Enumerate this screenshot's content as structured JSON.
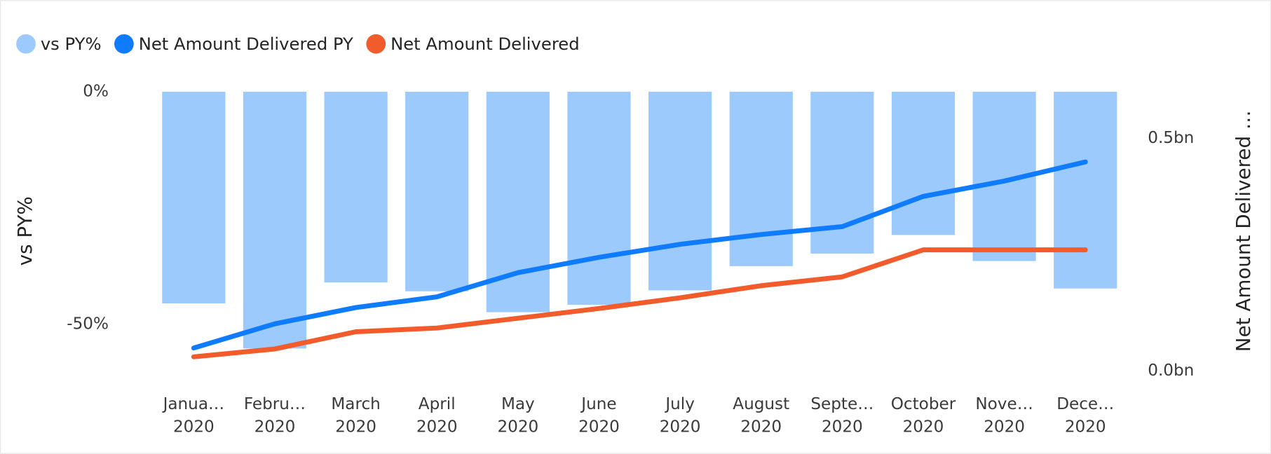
{
  "chart_data": {
    "type": "combo",
    "categories": [
      "Janua… 2020",
      "Febru… 2020",
      "March 2020",
      "April 2020",
      "May 2020",
      "June 2020",
      "July 2020",
      "August 2020",
      "Septe… 2020",
      "October 2020",
      "Nove… 2020",
      "Dece… 2020"
    ],
    "ylabel": "vs PY%",
    "y2label": "Net Amount Delivered …",
    "ylim": [
      -62,
      0
    ],
    "yticks": [
      {
        "value": 0,
        "label": "0%"
      },
      {
        "value": -50,
        "label": "-50%"
      }
    ],
    "y2lim": [
      -0.02,
      0.6
    ],
    "y2ticks": [
      {
        "value": 0,
        "label": "0.0bn"
      },
      {
        "value": 0.5,
        "label": "0.5bn"
      }
    ],
    "legend": "top-left",
    "series": [
      {
        "name": "vs PY%",
        "type": "bar",
        "color": "#9ccafd",
        "values": [
          -45.5,
          -55.2,
          -41,
          -42.9,
          -47.4,
          -45.8,
          -42.7,
          -37.5,
          -34.8,
          -30.8,
          -36.4,
          -42.3
        ]
      },
      {
        "name": "Net Amount Delivered PY",
        "type": "line",
        "axis": "y2",
        "color": "#0f7bff",
        "values": [
          0.049,
          0.101,
          0.136,
          0.159,
          0.211,
          0.244,
          0.272,
          0.293,
          0.31,
          0.375,
          0.408,
          0.449
        ]
      },
      {
        "name": "Net Amount Delivered",
        "type": "line",
        "axis": "y2",
        "color": "#f25c2c",
        "values": [
          0.03,
          0.047,
          0.084,
          0.092,
          0.113,
          0.134,
          0.157,
          0.183,
          0.202,
          0.26,
          0.26,
          0.26
        ]
      }
    ]
  }
}
